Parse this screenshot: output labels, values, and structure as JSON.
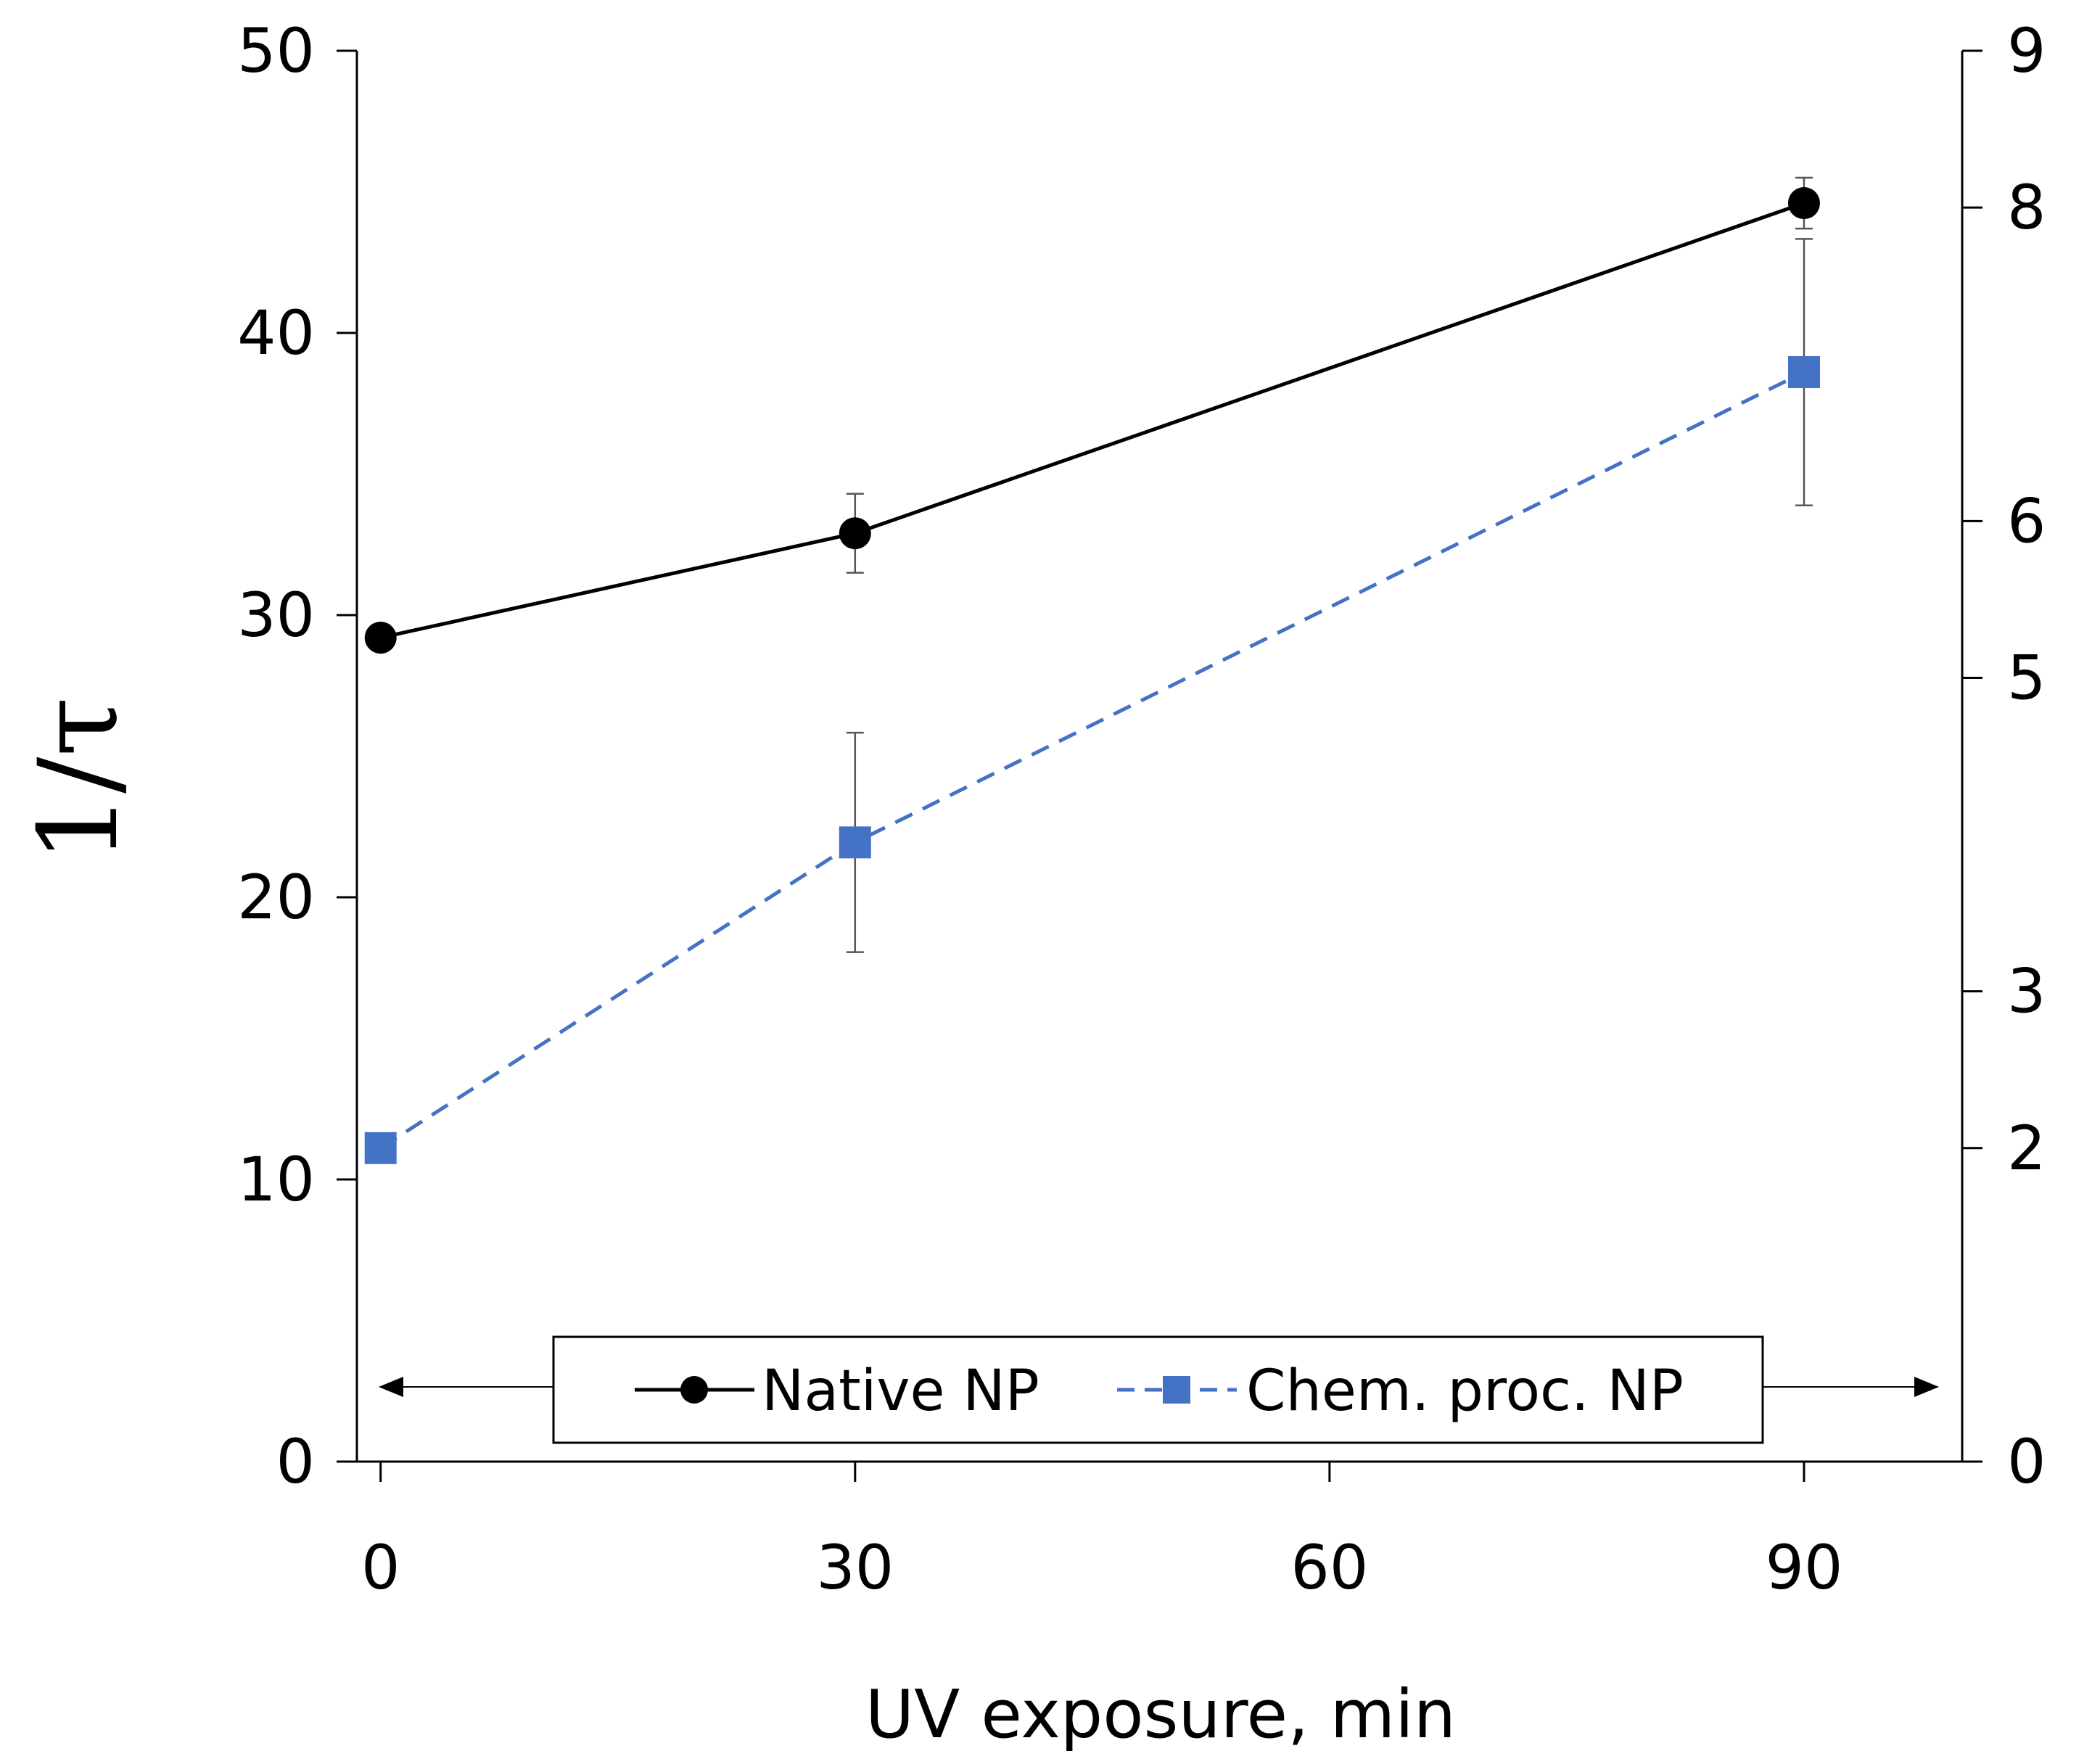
{
  "chart_data": {
    "type": "line",
    "title": "",
    "xlabel": "UV exposure, min",
    "ylabel": "1/τ",
    "x": [
      0,
      30,
      90
    ],
    "xlim": [
      -1.5,
      100
    ],
    "xticks": [
      0,
      30,
      60,
      90
    ],
    "xtick_labels": [
      "0",
      "30",
      "60",
      "90"
    ],
    "ylim": [
      0,
      50
    ],
    "yticks": [
      0,
      10,
      20,
      30,
      40,
      50
    ],
    "ytick_labels": [
      "0",
      "10",
      "20",
      "30",
      "40",
      "50"
    ],
    "y2lim": [
      0,
      9
    ],
    "y2ticks": [
      0,
      2,
      3,
      5,
      6,
      8,
      9
    ],
    "y2tick_labels": [
      "0",
      "2",
      "3",
      "5",
      "6",
      "8",
      "9"
    ],
    "grid": false,
    "legend_position": "bottom-center",
    "series": [
      {
        "name": "Native NP",
        "color": "#000000",
        "marker": "circle",
        "line_style": "solid",
        "axis": "left",
        "values": [
          29.2,
          32.9,
          44.6
        ],
        "error": [
          null,
          1.4,
          0.9
        ]
      },
      {
        "name": "Chem. proc. NP",
        "color": "#4472C4",
        "marker": "square",
        "line_style": "dashed",
        "axis": "right",
        "values": [
          2.0,
          3.95,
          6.95
        ],
        "error": [
          null,
          0.7,
          0.85
        ]
      }
    ]
  }
}
